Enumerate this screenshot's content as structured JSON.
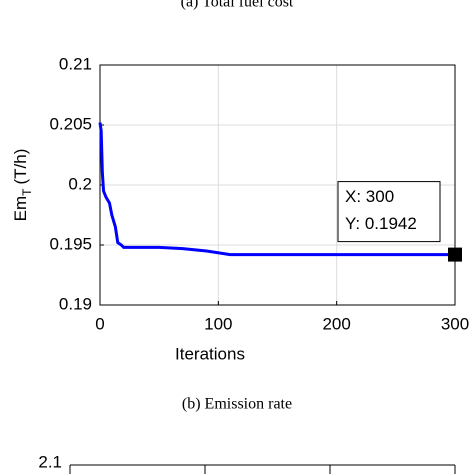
{
  "captions": [
    "(a) Total fuel cost",
    "(b) Emission rate"
  ],
  "chart_data": [
    {
      "type": "line",
      "ylabel": {
        "main": "Em",
        "sub": "T",
        "rest": "(T/h)"
      },
      "xlabel": "Iterations",
      "x": [
        0,
        1,
        2,
        3,
        5,
        8,
        10,
        13,
        15,
        18,
        20,
        30,
        50,
        70,
        90,
        110,
        200,
        300
      ],
      "series": [
        {
          "color": "#0000ff",
          "values": [
            0.2052,
            0.2045,
            0.201,
            0.1995,
            0.199,
            0.1985,
            0.1975,
            0.1965,
            0.1952,
            0.195,
            0.1948,
            0.1948,
            0.1948,
            0.1947,
            0.1945,
            0.1942,
            0.1942,
            0.1942
          ]
        }
      ],
      "xlim": [
        0,
        300
      ],
      "xticks": [
        0,
        100,
        200,
        300
      ],
      "ylim": [
        0.19,
        0.21
      ],
      "yticks": [
        0.19,
        0.195,
        0.2,
        0.205,
        0.21
      ],
      "grid": true,
      "datatip": {
        "x": 300,
        "y": 0.1942,
        "labels": [
          "X: 300",
          "Y: 0.1942"
        ]
      }
    },
    {
      "type": "line",
      "yticks": [
        2.1
      ]
    }
  ]
}
